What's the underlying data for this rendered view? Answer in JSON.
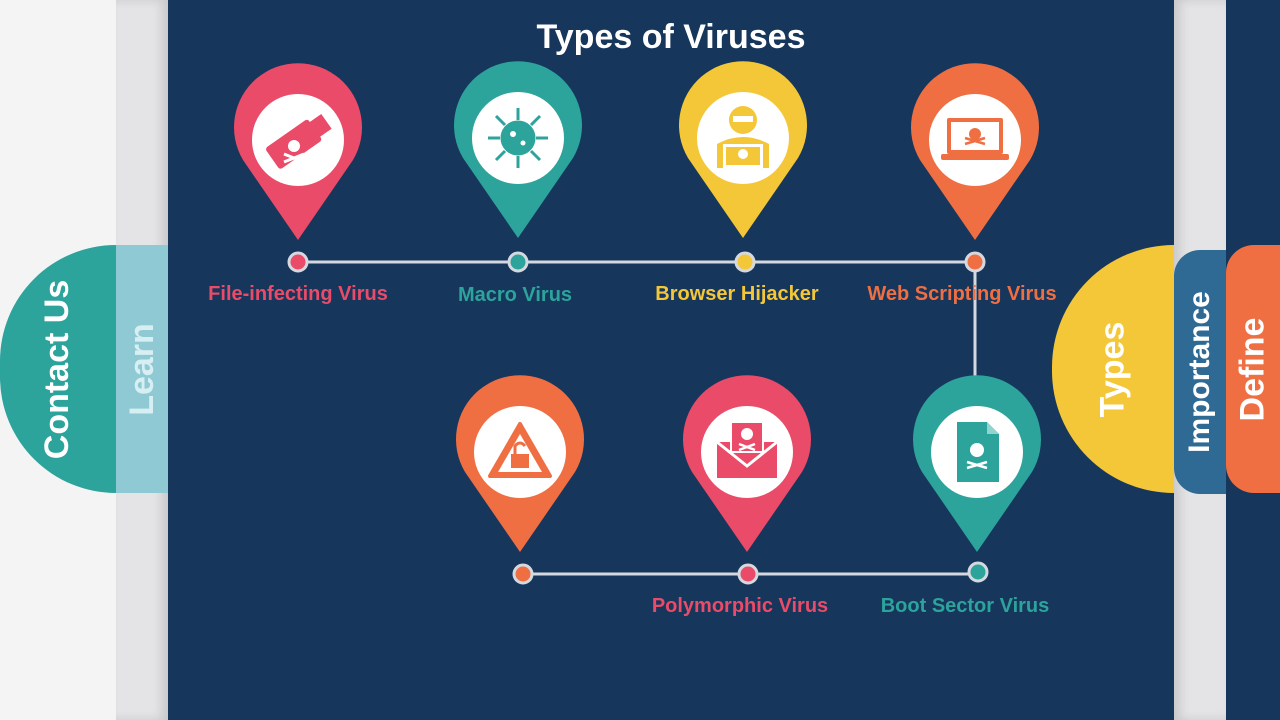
{
  "title": "Types of Viruses",
  "nav": {
    "left": [
      {
        "label": "Contact Us",
        "color": "#2ca39b"
      },
      {
        "label": "Learn",
        "color": "#8ec9d4"
      }
    ],
    "right": [
      {
        "label": "Types",
        "color": "#f3c737"
      },
      {
        "label": "Importance",
        "color": "#2f6a95"
      },
      {
        "label": "Define",
        "color": "#ef6f43"
      }
    ]
  },
  "viruses": [
    {
      "label": "File-infecting Virus",
      "color": "#e94b68",
      "icon": "usb-skull-icon"
    },
    {
      "label": "Macro Virus",
      "color": "#2ca39b",
      "icon": "virus-icon"
    },
    {
      "label": "Browser Hijacker",
      "color": "#f3c737",
      "icon": "hacker-icon"
    },
    {
      "label": "Web Scripting Virus",
      "color": "#ef6f43",
      "icon": "laptop-skull-icon"
    },
    {
      "label": "",
      "color": "#ef6f43",
      "icon": "unlock-warning-icon"
    },
    {
      "label": "Polymorphic Virus",
      "color": "#e94b68",
      "icon": "mail-skull-icon"
    },
    {
      "label": "Boot Sector Virus",
      "color": "#2ca39b",
      "icon": "file-skull-icon"
    }
  ]
}
